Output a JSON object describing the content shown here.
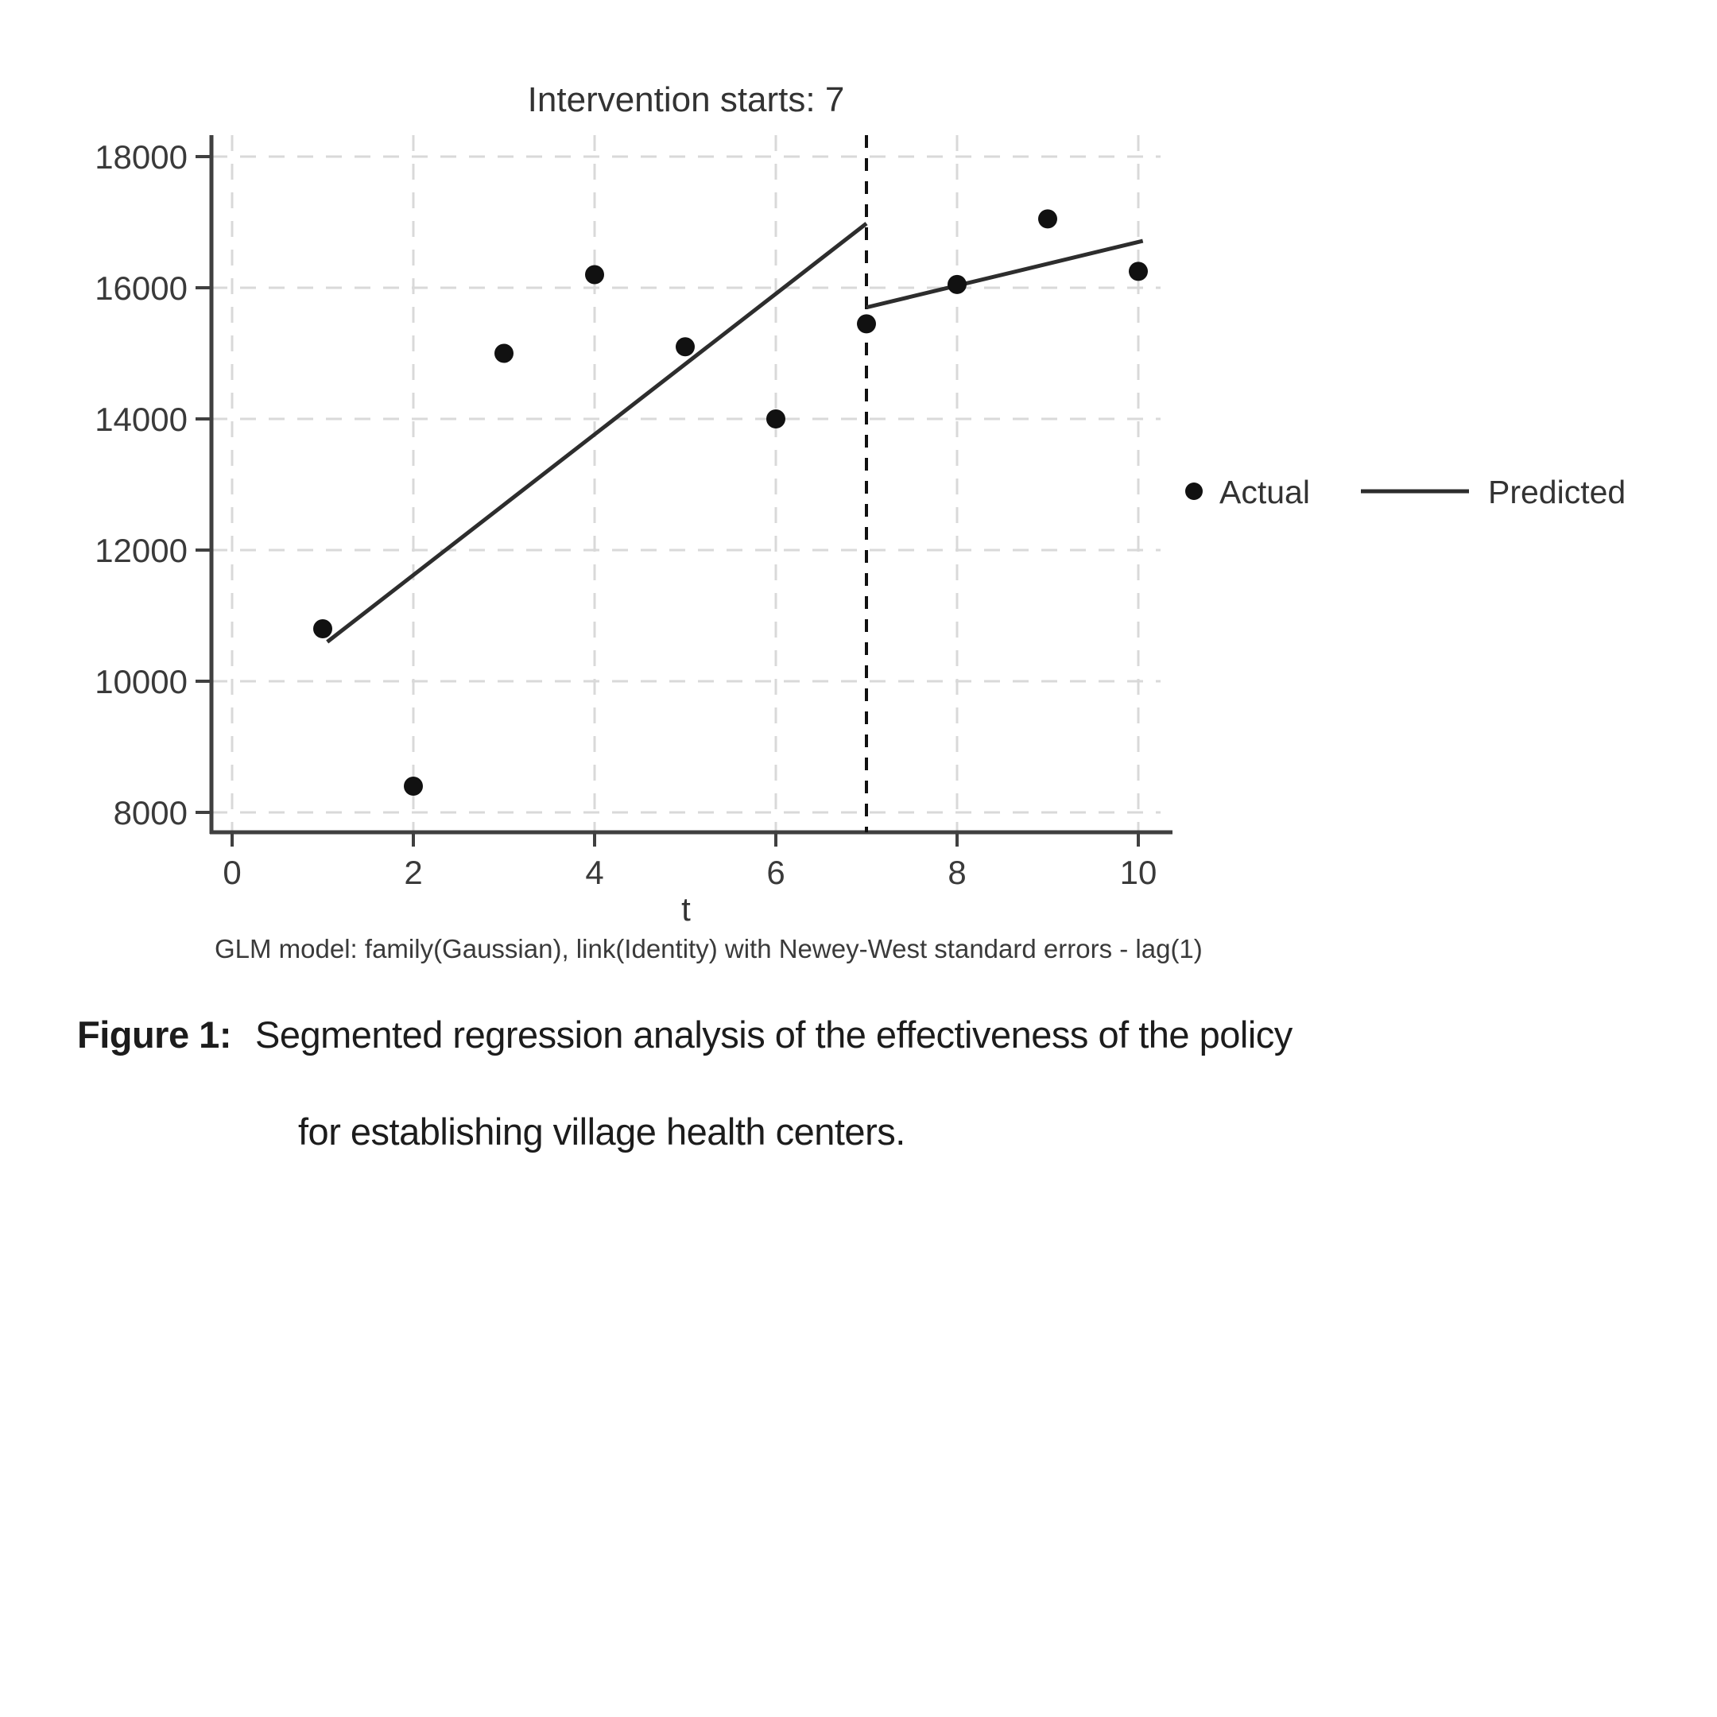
{
  "figure": {
    "caption_label": "Figure 1:",
    "caption_line1": "Segmented regression analysis of the effectiveness of the policy",
    "caption_line2": "for establishing village health centers."
  },
  "chart_data": {
    "type": "scatter",
    "title": "Intervention starts: 7",
    "xlabel": "t",
    "ylabel": "",
    "note": "GLM model: family(Gaussian), link(Identity) with Newey-West standard errors - lag(1)",
    "xticks": [
      0,
      2,
      4,
      6,
      8,
      10
    ],
    "yticks": [
      8000,
      10000,
      12000,
      14000,
      16000,
      18000
    ],
    "xlim": [
      -0.23,
      10.25
    ],
    "ylim": [
      7700,
      18350
    ],
    "grid": true,
    "intervention": {
      "x": 7,
      "style": "dashed"
    },
    "legend": {
      "position": "right-of-plot",
      "entries": [
        {
          "label": "Actual",
          "marker": "dot"
        },
        {
          "label": "Predicted",
          "marker": "line"
        }
      ]
    },
    "series": [
      {
        "name": "Actual",
        "type": "scatter",
        "x": [
          1,
          2,
          3,
          4,
          5,
          6,
          7,
          8,
          9,
          10
        ],
        "y": [
          10800,
          8400,
          15000,
          16200,
          15100,
          14000,
          15450,
          16050,
          17050,
          16250
        ]
      },
      {
        "name": "Predicted",
        "type": "line",
        "segments": [
          {
            "x": [
              1.05,
              7
            ],
            "y": [
              10600,
              16980
            ]
          },
          {
            "x": [
              7,
              10.05
            ],
            "y": [
              15700,
              16715
            ]
          }
        ]
      }
    ],
    "colors": {
      "point": "#111111",
      "line": "#2d2d2d",
      "grid": "#d9d9d9",
      "axis": "#404040",
      "text": "#333333",
      "tick_text": "#3a3a3a",
      "intervention": "#111111"
    }
  }
}
